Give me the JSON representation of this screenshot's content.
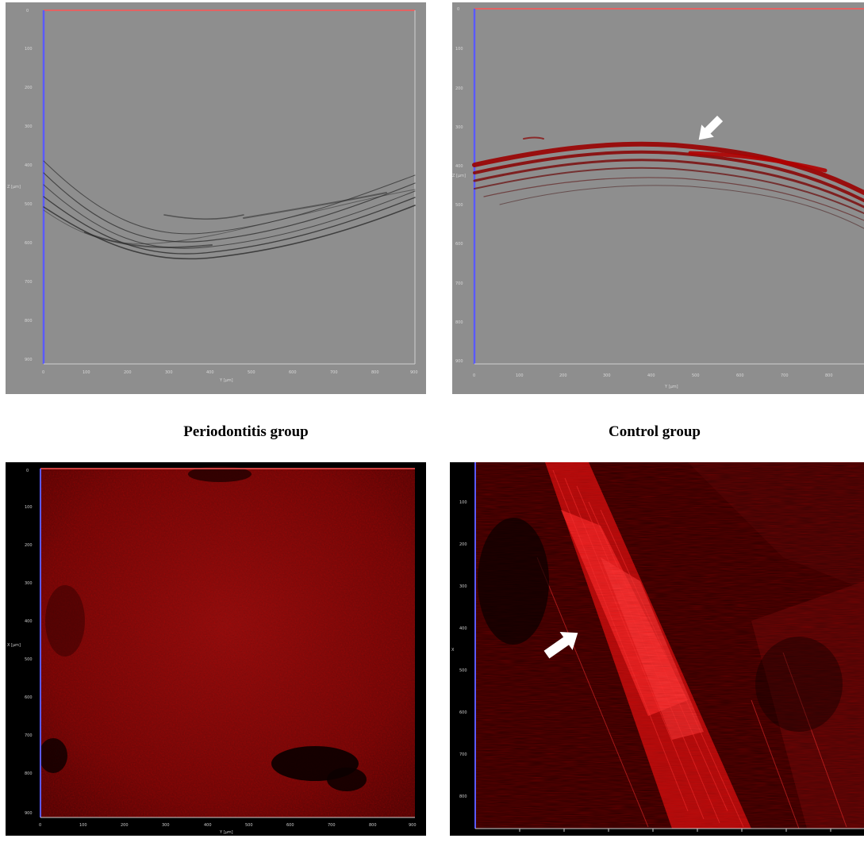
{
  "captions": {
    "left": "Periodontitis group",
    "right": "Control group"
  },
  "panels": {
    "top_left": {
      "y_ticks": [
        "0",
        "100",
        "200",
        "300",
        "400",
        "500",
        "600",
        "700",
        "800",
        "900"
      ],
      "x_ticks": [
        "0",
        "100",
        "200",
        "300",
        "400",
        "500",
        "600",
        "700",
        "800",
        "900"
      ],
      "x_label": "Y [µm]",
      "y_label": "Z [µm]"
    },
    "top_right": {
      "y_ticks": [
        "0",
        "100",
        "200",
        "300",
        "400",
        "500",
        "600",
        "700",
        "800",
        "900"
      ],
      "x_ticks": [
        "0",
        "100",
        "200",
        "300",
        "400",
        "500",
        "600",
        "700",
        "800"
      ],
      "x_label": "Y [µm]",
      "y_label": "Z [µm]",
      "arrow": "white-arrow-icon"
    },
    "bottom_left": {
      "y_ticks": [
        "0",
        "100",
        "200",
        "300",
        "400",
        "500",
        "600",
        "700",
        "800",
        "900"
      ],
      "x_ticks": [
        "0",
        "100",
        "200",
        "300",
        "400",
        "500",
        "600",
        "700",
        "800",
        "900"
      ],
      "x_label": "Y [µm]",
      "y_label": "X [µm]"
    },
    "bottom_right": {
      "y_ticks": [
        "100",
        "200",
        "300",
        "400",
        "500",
        "600",
        "700",
        "800"
      ],
      "y_label": "X",
      "arrow": "white-arrow-icon"
    }
  },
  "colors": {
    "gray_background": "#8e8e8e",
    "collagen_red": "#c80000",
    "axis_blue": "#5a5aff",
    "axis_red": "#ff4a4a"
  }
}
